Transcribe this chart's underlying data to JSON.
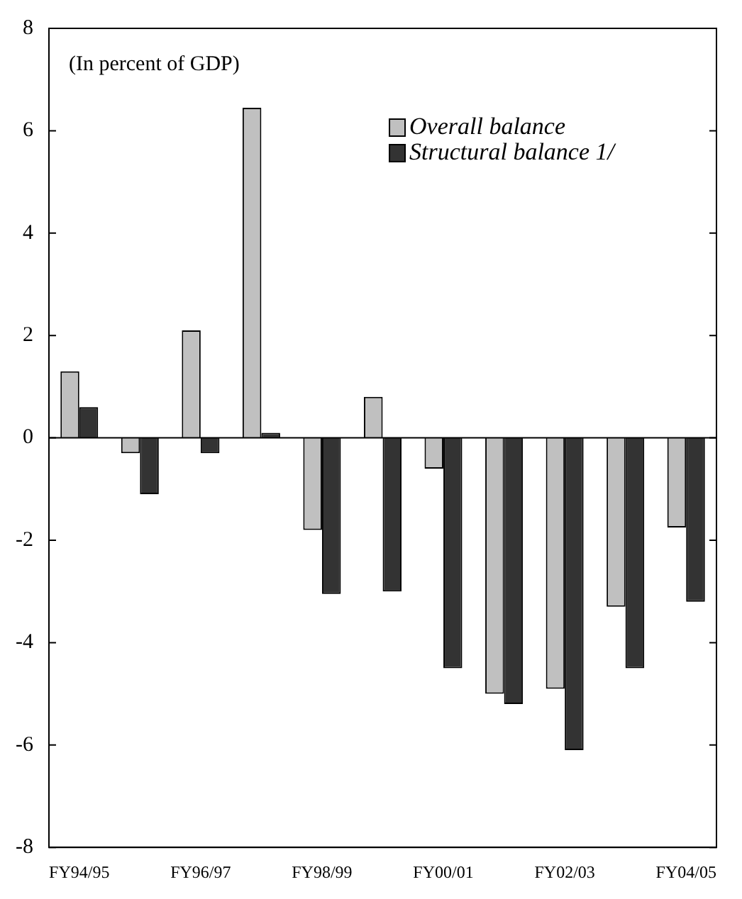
{
  "chart_data": {
    "type": "bar",
    "categories": [
      "FY94/95",
      null,
      "FY96/97",
      null,
      "FY98/99",
      null,
      "FY00/01",
      null,
      "FY02/03",
      null,
      "FY04/05"
    ],
    "series": [
      {
        "name": "Overall balance",
        "color": "#c0c0c0",
        "values": [
          1.3,
          -0.3,
          2.1,
          6.45,
          -1.8,
          0.8,
          -0.6,
          -5.0,
          -4.9,
          -3.3,
          -1.75
        ]
      },
      {
        "name": "Structural balance 1/",
        "color": "#333333",
        "values": [
          0.6,
          -1.1,
          -0.3,
          0.1,
          -3.05,
          -3.0,
          -4.5,
          -5.2,
          -6.1,
          -4.5,
          -3.2
        ]
      }
    ],
    "ylim": [
      -8,
      8
    ],
    "yticks": [
      -8,
      -6,
      -4,
      -2,
      0,
      2,
      4,
      6,
      8
    ],
    "annotations": [
      "(In percent of GDP)"
    ],
    "ref_lines": [
      {
        "axis": "y",
        "value": 0,
        "color": "#000000"
      }
    ],
    "legend": "top right",
    "grid": false
  }
}
